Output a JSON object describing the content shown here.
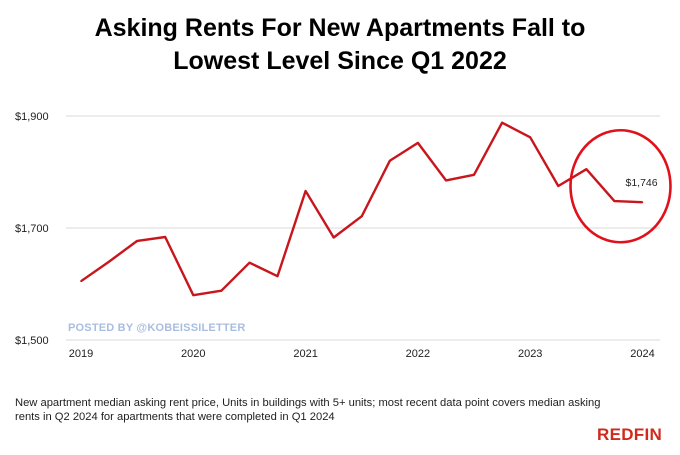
{
  "title_line1": "Asking Rents For New Apartments Fall to",
  "title_line2": "Lowest Level Since Q1 2022",
  "watermark": "POSTED BY @KOBEISSILETTER",
  "caption": "New apartment median asking rent price, Units in buildings with 5+ units; most recent data point covers median asking rents in Q2 2024 for apartments that were completed in Q1 2024",
  "brand": "REDFIN",
  "colors": {
    "line": "#c8161d",
    "highlight_circle": "#e0111b",
    "grid": "#d9d9d9",
    "brand": "#d12a1c"
  },
  "chart_data": {
    "type": "line",
    "title": "Asking Rents For New Apartments Fall to Lowest Level Since Q1 2022",
    "ylim": [
      1500,
      1900
    ],
    "y_ticks": [
      1500,
      1700,
      1900
    ],
    "y_tick_labels": [
      "$1,500",
      "$1,700",
      "$1,900"
    ],
    "x_ticks": [
      2019,
      2020,
      2021,
      2022,
      2023,
      2024
    ],
    "x_tick_labels": [
      "2019",
      "2020",
      "2021",
      "2022",
      "2023",
      "2024"
    ],
    "grid": "horizontal",
    "series": [
      {
        "x": [
          "2019 Q1",
          "2019 Q2",
          "2019 Q3",
          "2019 Q4",
          "2020 Q1",
          "2020 Q2",
          "2020 Q3",
          "2020 Q4",
          "2021 Q1",
          "2021 Q2",
          "2021 Q3",
          "2021 Q4",
          "2022 Q1",
          "2022 Q2",
          "2022 Q3",
          "2022 Q4",
          "2023 Q1",
          "2023 Q2",
          "2023 Q3",
          "2023 Q4",
          "2024 Q1"
        ],
        "values": [
          1605,
          1640,
          1677,
          1684,
          1580,
          1588,
          1638,
          1614,
          1766,
          1683,
          1721,
          1820,
          1852,
          1785,
          1795,
          1888,
          1862,
          1775,
          1805,
          1748,
          1746
        ]
      }
    ],
    "annotations": [
      {
        "text": "$1,746",
        "point_index": 20
      }
    ]
  }
}
